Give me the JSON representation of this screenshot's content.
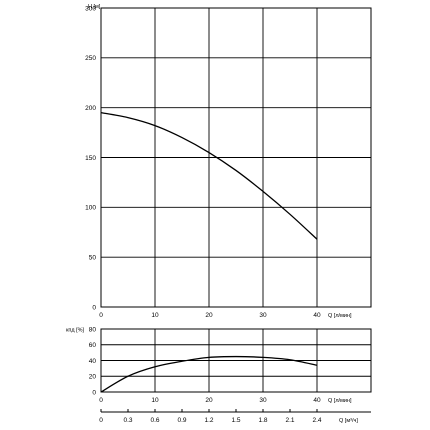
{
  "chart_data": [
    {
      "type": "line",
      "ylabel": "H [м]",
      "xlabel": "Q [л/мин]",
      "x_ticks": [
        "0",
        "10",
        "20",
        "30",
        "40"
      ],
      "y_ticks": [
        "0",
        "50",
        "100",
        "150",
        "200",
        "250",
        "300"
      ],
      "xlim": [
        0,
        50
      ],
      "ylim": [
        0,
        300
      ],
      "grid": true,
      "series": [
        {
          "x": [
            0,
            5,
            10,
            15,
            20,
            25,
            30,
            35,
            40
          ],
          "y": [
            195,
            190,
            182,
            170,
            155,
            137,
            116,
            93,
            68
          ]
        }
      ]
    },
    {
      "type": "line",
      "ylabel": "кпд [%]",
      "xlabel": "Q [л/мин]",
      "x_ticks": [
        "0",
        "10",
        "20",
        "30",
        "40"
      ],
      "y_ticks": [
        "0",
        "20",
        "40",
        "60",
        "80"
      ],
      "xlim": [
        0,
        50
      ],
      "ylim": [
        0,
        80
      ],
      "grid": true,
      "series": [
        {
          "x": [
            0,
            5,
            10,
            15,
            20,
            25,
            30,
            35,
            40
          ],
          "y": [
            0,
            20,
            32,
            39,
            44,
            45,
            44,
            41,
            34
          ]
        }
      ],
      "secondary_x_ticks": [
        "0",
        "0.3",
        "0.6",
        "0.9",
        "1.2",
        "1.5",
        "1.8",
        "2.1",
        "2.4"
      ],
      "secondary_xlabel": "Q [м³/ч]"
    }
  ]
}
